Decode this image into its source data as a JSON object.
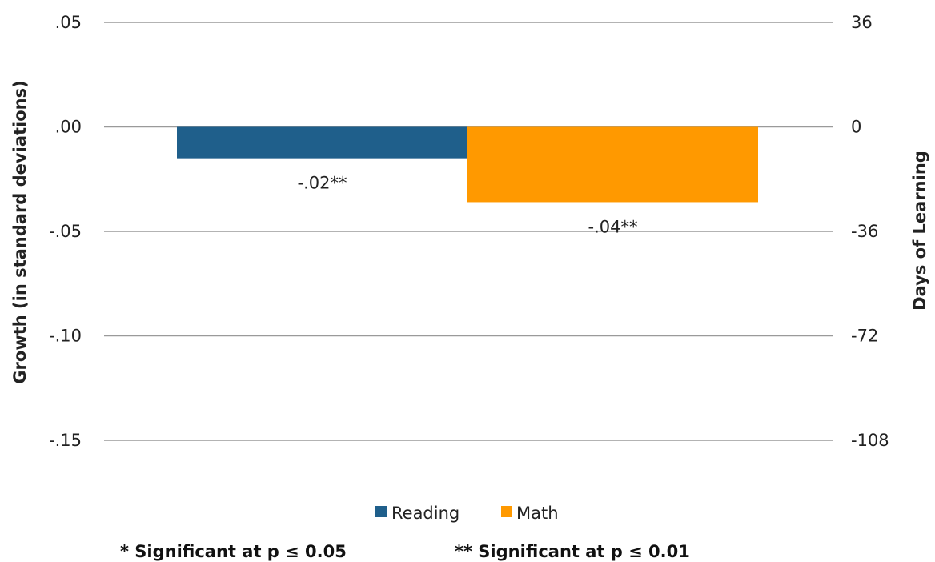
{
  "chart_data": {
    "type": "bar",
    "categories": [
      "Reading",
      "Math"
    ],
    "values": [
      -0.015,
      -0.036
    ],
    "data_labels": [
      "-.02**",
      "-.04**"
    ],
    "colors": [
      "#1f5f8b",
      "#ff9900"
    ],
    "gridline_color": "#9a9a9a",
    "title": "",
    "ylabel": "Growth (in standard deviations)",
    "ylabel_right": "Days of Learning",
    "ylim": [
      -0.15,
      0.05
    ],
    "y_ticks": [
      0.05,
      0.0,
      -0.05,
      -0.1,
      -0.15
    ],
    "y_tick_labels": [
      ".05",
      ".00",
      "-.05",
      "-.10",
      "-.15"
    ],
    "y2_tick_labels": [
      "36",
      "0",
      "-36",
      "-72",
      "-108"
    ],
    "grid": true,
    "legend": {
      "position": "bottom",
      "entries": [
        "Reading",
        "Math"
      ]
    },
    "footnotes": [
      "* Significant at p ≤ 0.05",
      "** Significant at p ≤ 0.01"
    ]
  }
}
